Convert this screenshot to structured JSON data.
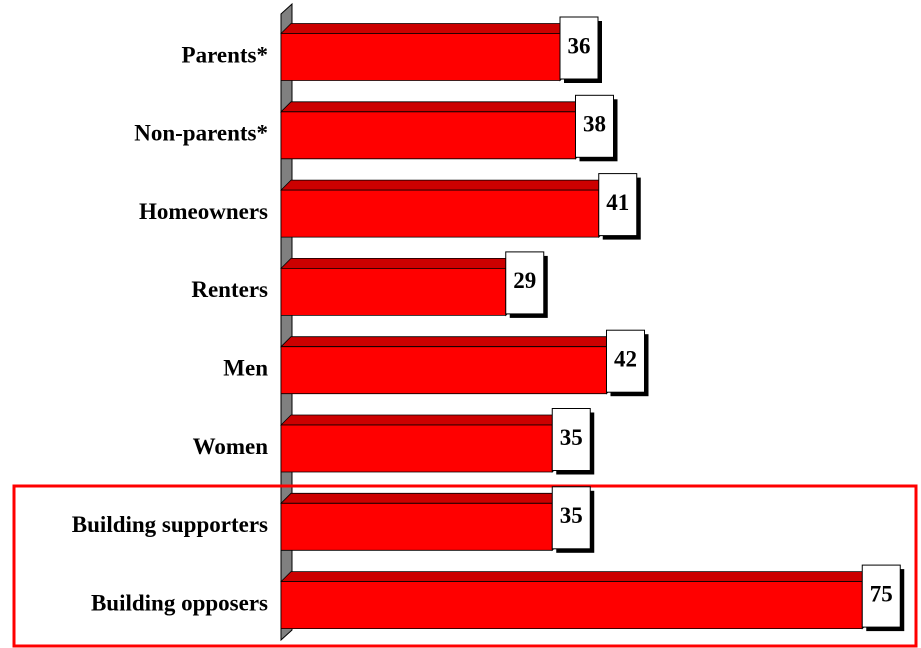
{
  "chart_data": {
    "type": "bar",
    "orientation": "horizontal",
    "categories": [
      "Parents*",
      "Non-parents*",
      "Homeowners",
      "Renters",
      "Men",
      "Women",
      "Building supporters",
      "Building opposers"
    ],
    "values": [
      36,
      38,
      41,
      29,
      42,
      35,
      35,
      75
    ],
    "color": "#ff0000"
  }
}
